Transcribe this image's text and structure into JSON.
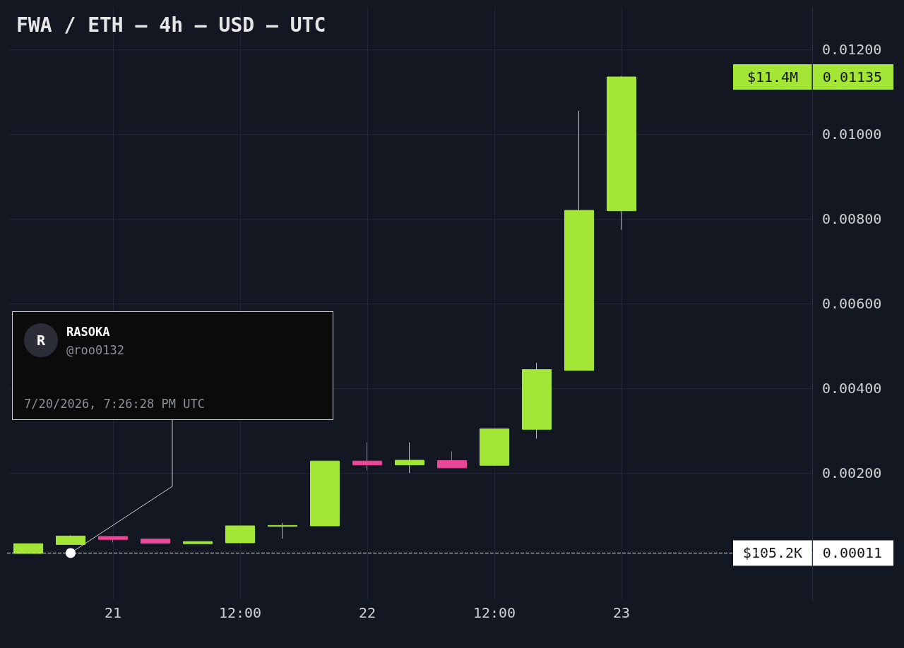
{
  "chart_data": {
    "type": "candlestick",
    "title": "FWA / ETH — 4h — USD — UTC",
    "x": [
      "2026-07-20T16:00",
      "2026-07-20T20:00",
      "2026-07-21T00:00",
      "2026-07-21T04:00",
      "2026-07-21T08:00",
      "2026-07-21T12:00",
      "2026-07-21T16:00",
      "2026-07-21T20:00",
      "2026-07-22T00:00",
      "2026-07-22T04:00",
      "2026-07-22T08:00",
      "2026-07-22T12:00",
      "2026-07-22T16:00",
      "2026-07-22T20:00",
      "2026-07-23T00:00"
    ],
    "ohlc": [
      [
        0.0001,
        0.00033,
        0.0001,
        0.00033
      ],
      [
        0.00031,
        0.00053,
        0.00031,
        0.00051
      ],
      [
        0.0005,
        0.0005,
        0.00036,
        0.00043
      ],
      [
        0.00044,
        0.00044,
        0.00034,
        0.00034
      ],
      [
        0.00033,
        0.00038,
        0.00033,
        0.00038
      ],
      [
        0.00035,
        0.00075,
        0.00035,
        0.00075
      ],
      [
        0.00074,
        0.00082,
        0.00045,
        0.00076
      ],
      [
        0.00075,
        0.00228,
        0.00075,
        0.00228
      ],
      [
        0.00228,
        0.00272,
        0.00206,
        0.00219
      ],
      [
        0.00219,
        0.00272,
        0.002,
        0.0023
      ],
      [
        0.00229,
        0.00251,
        0.00212,
        0.00212
      ],
      [
        0.00218,
        0.00304,
        0.00218,
        0.00304
      ],
      [
        0.00303,
        0.0046,
        0.00281,
        0.00444
      ],
      [
        0.00442,
        0.01055,
        0.00442,
        0.0082
      ],
      [
        0.00819,
        0.01137,
        0.00774,
        0.01135
      ]
    ],
    "colors": [
      "#a3e635",
      "#a3e635",
      "#ec4899",
      "#ec4899",
      "#a3e635",
      "#a3e635",
      "#a3e635",
      "#a3e635",
      "#ec4899",
      "#a3e635",
      "#ec4899",
      "#a3e635",
      "#a3e635",
      "#a3e635",
      "#a3e635"
    ],
    "xlim": [
      "2026-07-20T14:00",
      "2026-07-23T18:00"
    ],
    "xticks": [
      {
        "value": "2026-07-21T00:00",
        "label": "21"
      },
      {
        "value": "2026-07-21T12:00",
        "label": "12:00"
      },
      {
        "value": "2026-07-22T00:00",
        "label": "22"
      },
      {
        "value": "2026-07-22T12:00",
        "label": "12:00"
      },
      {
        "value": "2026-07-23T00:00",
        "label": "23"
      }
    ],
    "ylim": [
      -0.001,
      0.013
    ],
    "yticks": [
      {
        "value": 0.002,
        "label": "0.00200"
      },
      {
        "value": 0.004,
        "label": "0.00400"
      },
      {
        "value": 0.006,
        "label": "0.00600"
      },
      {
        "value": 0.008,
        "label": "0.00800"
      },
      {
        "value": 0.01,
        "label": "0.01000"
      },
      {
        "value": 0.012,
        "label": "0.01200"
      }
    ],
    "grid": true,
    "ref_lines": [
      {
        "axis": "y",
        "value": 0.00011,
        "label": "$105.2K",
        "color": "#ffffff",
        "line_style": "dashed"
      }
    ],
    "annotations": [
      "R",
      "RASOKA",
      "@roo0132",
      {
        "text": "7/20/2026, 7:26:28 PM UTC",
        "x": "2026-07-20T20:00",
        "y": 0.00011
      },
      "$11.4M",
      "0.01135",
      "0.00011"
    ]
  }
}
